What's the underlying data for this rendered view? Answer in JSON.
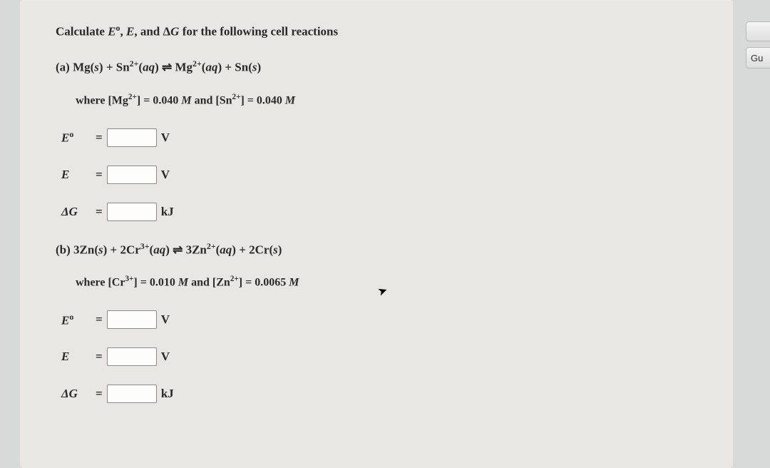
{
  "prompt": "Calculate E⁰, E, and ΔG for the following cell reactions",
  "partA": {
    "label": "(a) Mg(s) + Sn²⁺(aq) ⇌ Mg²⁺(aq) + Sn(s)",
    "condition": "where [Mg²⁺] = 0.040 M and [Sn²⁺] = 0.040 M"
  },
  "partB": {
    "label": "(b) 3Zn(s) + 2Cr³⁺(aq) ⇌ 3Zn²⁺(aq) + 2Cr(s)",
    "condition": "where [Cr³⁺] = 0.010 M and [Zn²⁺] = 0.0065 M"
  },
  "rows": {
    "e0": {
      "label": "E⁰",
      "unit": "V"
    },
    "e": {
      "label": "E",
      "unit": "V"
    },
    "dg": {
      "label": "ΔG",
      "unit": "kJ"
    }
  },
  "sideButton": "Gu"
}
